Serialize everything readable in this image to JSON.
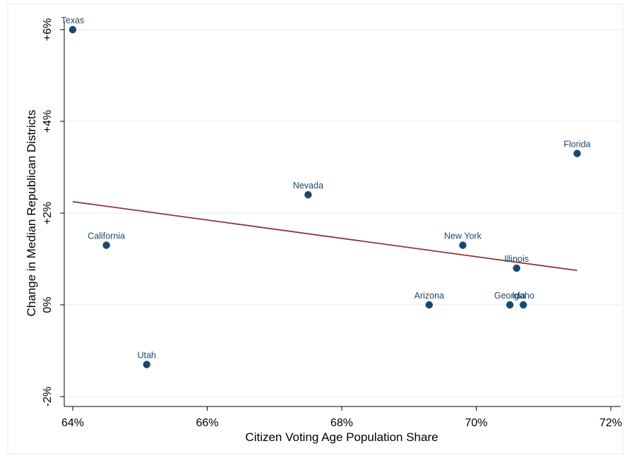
{
  "chart_data": {
    "type": "scatter",
    "title": "",
    "xlabel": "Citizen Voting Age Population Share",
    "ylabel": "Change in Median Republican Districts",
    "xlim": [
      64,
      72
    ],
    "ylim": [
      -2,
      6
    ],
    "x_ticks": [
      64,
      66,
      68,
      70,
      72
    ],
    "x_tick_labels": [
      "64%",
      "66%",
      "68%",
      "70%",
      "72%"
    ],
    "y_ticks": [
      -2,
      0,
      2,
      4,
      6
    ],
    "y_tick_labels": [
      "-2%",
      "0%",
      "+2%",
      "+4%",
      "+6%"
    ],
    "grid": "horizontal",
    "points": [
      {
        "label": "Texas",
        "x": 64.0,
        "y": 6.0
      },
      {
        "label": "California",
        "x": 64.5,
        "y": 1.3
      },
      {
        "label": "Utah",
        "x": 65.1,
        "y": -1.3
      },
      {
        "label": "Nevada",
        "x": 67.5,
        "y": 2.4
      },
      {
        "label": "Arizona",
        "x": 69.3,
        "y": 0.0
      },
      {
        "label": "New York",
        "x": 69.8,
        "y": 1.3
      },
      {
        "label": "Georgia",
        "x": 70.5,
        "y": 0.0
      },
      {
        "label": "Illinois",
        "x": 70.6,
        "y": 0.8
      },
      {
        "label": "Idaho",
        "x": 70.7,
        "y": 0.0
      },
      {
        "label": "Florida",
        "x": 71.5,
        "y": 3.3
      }
    ],
    "fit_line": {
      "x": [
        64.0,
        71.5
      ],
      "y": [
        2.25,
        0.75
      ]
    },
    "colors": {
      "marker": "#1a476f",
      "fit_line": "#90353b",
      "grid": "#eaf2f3",
      "frame": "#e8e8e8"
    }
  }
}
